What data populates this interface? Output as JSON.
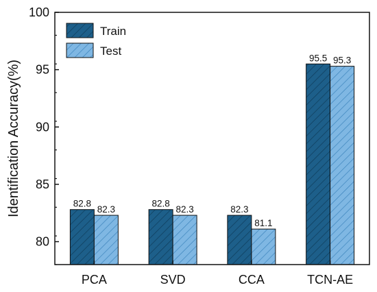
{
  "chart_data": {
    "type": "bar",
    "categories": [
      "PCA",
      "SVD",
      "CCA",
      "TCN-AE"
    ],
    "series": [
      {
        "name": "Train",
        "values": [
          82.8,
          82.8,
          82.3,
          95.5
        ],
        "labels": [
          "82.8",
          "82.8",
          "82.3",
          "95.5"
        ],
        "color": "#1d5f8a",
        "hatch": "dark"
      },
      {
        "name": "Test",
        "values": [
          82.3,
          82.3,
          81.1,
          95.3
        ],
        "labels": [
          "82.3",
          "82.3",
          "81.1",
          "95.3"
        ],
        "color": "#7fb7e3",
        "hatch": "light"
      }
    ],
    "ylabel": "Identification Accuracy(%)",
    "xlabel": "",
    "ylim": [
      78,
      100
    ],
    "yticks": [
      80,
      85,
      90,
      95,
      100
    ],
    "legend_position": "top-left",
    "grid": false
  }
}
